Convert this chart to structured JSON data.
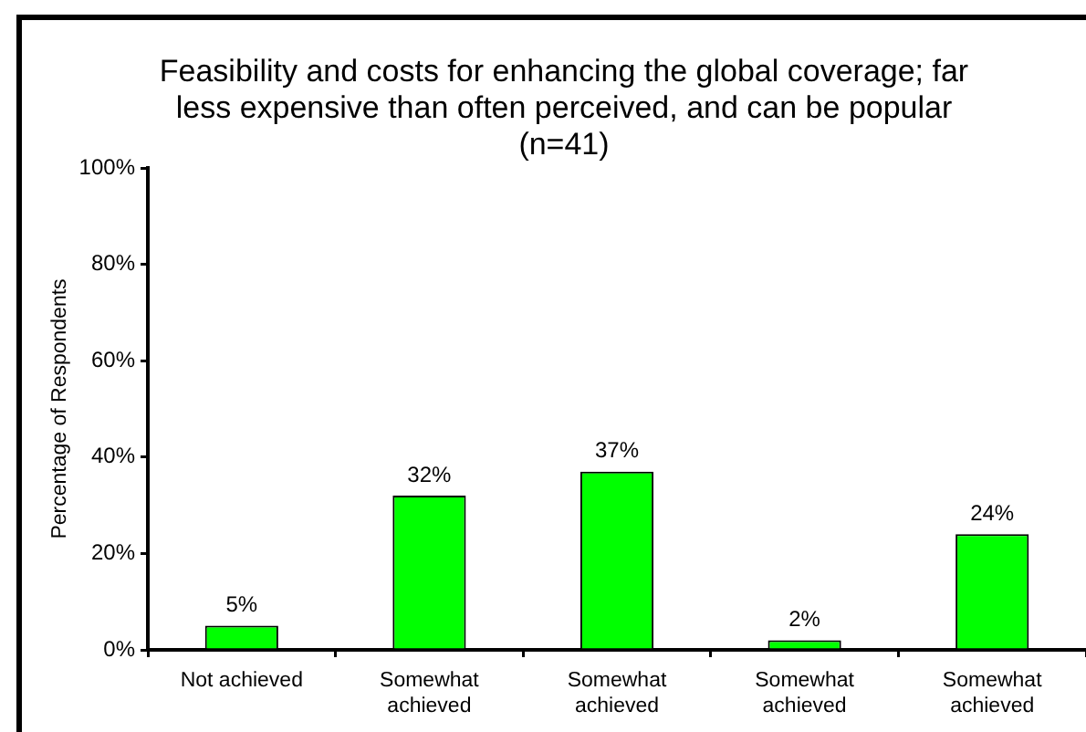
{
  "chart_data": {
    "type": "bar",
    "title": "Feasibility and costs for enhancing the global coverage; far\nless expensive than often perceived, and can be popular\n(n=41)",
    "ylabel": "Percentage of Respondents",
    "categories": [
      "Not achieved",
      "Somewhat achieved",
      "Somewhat achieved",
      "Somewhat achieved",
      "Somewhat achieved"
    ],
    "values": [
      5,
      32,
      37,
      2,
      24
    ],
    "value_labels": [
      "5%",
      "32%",
      "37%",
      "2%",
      "24%"
    ],
    "color": "#00ff00",
    "ylim": [
      0,
      100
    ],
    "yticks": [
      {
        "value": 0,
        "label": "0%"
      },
      {
        "value": 20,
        "label": "20%"
      },
      {
        "value": 40,
        "label": "40%"
      },
      {
        "value": 60,
        "label": "60%"
      },
      {
        "value": 80,
        "label": "80%"
      },
      {
        "value": 100,
        "label": "100%"
      }
    ]
  }
}
